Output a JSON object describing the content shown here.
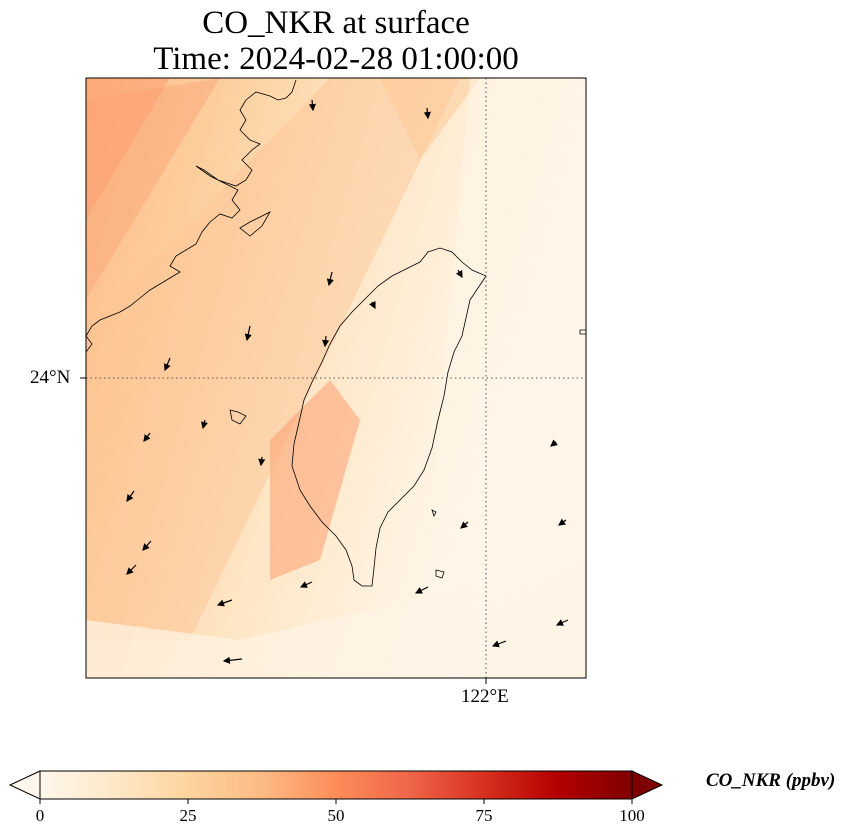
{
  "title": {
    "line1": "CO_NKR at surface",
    "line2": "Time: 2024-02-28 01:00:00"
  },
  "map": {
    "lat_tick_label": "24°N",
    "lon_tick_label": "122°E",
    "gridline_style": "dotted"
  },
  "colorbar": {
    "label": "CO_NKR (ppbv)",
    "ticks": [
      "0",
      "25",
      "50",
      "75",
      "100"
    ],
    "range": [
      0,
      100
    ],
    "extend": "both",
    "colormap": "OrRd",
    "colors": [
      "#fff7ec",
      "#fee8c8",
      "#fdd49e",
      "#fdbb84",
      "#fc8d59",
      "#ef6548",
      "#d7301f",
      "#b30000",
      "#7f0000"
    ]
  }
}
